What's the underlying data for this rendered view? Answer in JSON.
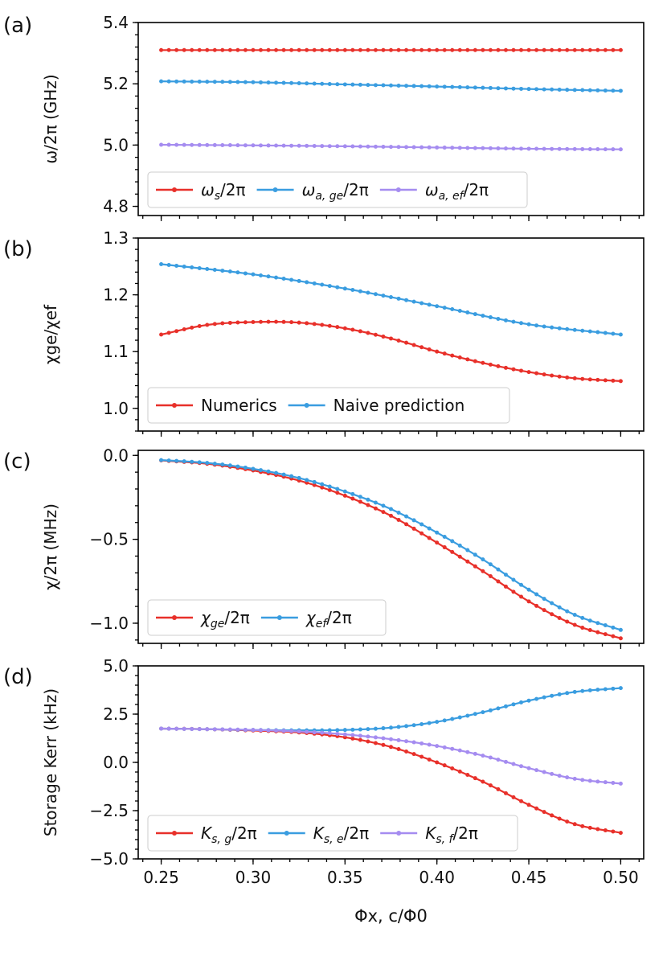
{
  "figure": {
    "x_label": "Φx, c/Φ0",
    "x_ticks": [
      "0.25",
      "0.30",
      "0.35",
      "0.40",
      "0.45",
      "0.50"
    ],
    "x_range": [
      0.2375,
      0.5125
    ],
    "colors": {
      "red": "#e8302a",
      "blue": "#3a9de0",
      "purple": "#a58cf0"
    }
  },
  "chart_data": [
    {
      "panel_label": "(a)",
      "type": "line",
      "ylabel": "ω/2π (GHz)",
      "ylim": [
        4.77,
        5.4
      ],
      "yticks": [
        "4.8",
        "5.0",
        "5.2",
        "5.4"
      ],
      "ytick_values": [
        4.8,
        5.0,
        5.2,
        5.4
      ],
      "x": [
        0.25,
        0.5
      ],
      "n_points": 61,
      "legend_location": "lower-left",
      "series": [
        {
          "name": "ωs/2π",
          "color": "red",
          "anchors": [
            [
              0.25,
              5.31
            ],
            [
              0.5,
              5.31
            ]
          ]
        },
        {
          "name": "ωa, ge/2π",
          "color": "blue",
          "anchors": [
            [
              0.25,
              5.208
            ],
            [
              0.3,
              5.205
            ],
            [
              0.35,
              5.198
            ],
            [
              0.4,
              5.191
            ],
            [
              0.45,
              5.183
            ],
            [
              0.5,
              5.177
            ]
          ]
        },
        {
          "name": "ωa, ef/2π",
          "color": "purple",
          "anchors": [
            [
              0.25,
              5.001
            ],
            [
              0.3,
              4.999
            ],
            [
              0.35,
              4.996
            ],
            [
              0.4,
              4.992
            ],
            [
              0.45,
              4.988
            ],
            [
              0.5,
              4.986
            ]
          ]
        }
      ]
    },
    {
      "panel_label": "(b)",
      "type": "line",
      "ylabel": "χge/χef",
      "ylim": [
        0.96,
        1.3
      ],
      "yticks": [
        "1.0",
        "1.1",
        "1.2",
        "1.3"
      ],
      "ytick_values": [
        1.0,
        1.1,
        1.2,
        1.3
      ],
      "n_points": 61,
      "legend_location": "lower-left",
      "series": [
        {
          "name": "Numerics",
          "color": "red",
          "anchors": [
            [
              0.25,
              1.13
            ],
            [
              0.275,
              1.147
            ],
            [
              0.3,
              1.152
            ],
            [
              0.325,
              1.151
            ],
            [
              0.35,
              1.141
            ],
            [
              0.375,
              1.123
            ],
            [
              0.4,
              1.1
            ],
            [
              0.425,
              1.08
            ],
            [
              0.45,
              1.064
            ],
            [
              0.475,
              1.053
            ],
            [
              0.5,
              1.048
            ]
          ]
        },
        {
          "name": "Naive prediction",
          "color": "blue",
          "anchors": [
            [
              0.25,
              1.254
            ],
            [
              0.3,
              1.236
            ],
            [
              0.35,
              1.211
            ],
            [
              0.4,
              1.18
            ],
            [
              0.45,
              1.148
            ],
            [
              0.5,
              1.13
            ]
          ]
        }
      ]
    },
    {
      "panel_label": "(c)",
      "type": "line",
      "ylabel": "χ/2π (MHz)",
      "ylim": [
        -1.12,
        0.03
      ],
      "yticks": [
        "−1.0",
        "−0.5",
        "0.0"
      ],
      "ytick_values": [
        -1.0,
        -0.5,
        0.0
      ],
      "n_points": 61,
      "legend_location": "lower-left",
      "series": [
        {
          "name": "χge/2π",
          "color": "red",
          "anchors": [
            [
              0.25,
              -0.03
            ],
            [
              0.275,
              -0.05
            ],
            [
              0.3,
              -0.09
            ],
            [
              0.325,
              -0.15
            ],
            [
              0.35,
              -0.24
            ],
            [
              0.375,
              -0.36
            ],
            [
              0.4,
              -0.52
            ],
            [
              0.425,
              -0.69
            ],
            [
              0.45,
              -0.87
            ],
            [
              0.475,
              -1.01
            ],
            [
              0.5,
              -1.09
            ]
          ]
        },
        {
          "name": "χef/2π",
          "color": "blue",
          "anchors": [
            [
              0.25,
              -0.028
            ],
            [
              0.275,
              -0.045
            ],
            [
              0.3,
              -0.08
            ],
            [
              0.325,
              -0.135
            ],
            [
              0.35,
              -0.215
            ],
            [
              0.375,
              -0.32
            ],
            [
              0.4,
              -0.46
            ],
            [
              0.425,
              -0.62
            ],
            [
              0.45,
              -0.8
            ],
            [
              0.475,
              -0.95
            ],
            [
              0.5,
              -1.04
            ]
          ]
        }
      ]
    },
    {
      "panel_label": "(d)",
      "type": "line",
      "ylabel": "Storage Kerr (kHz)",
      "ylim": [
        -5.0,
        5.0
      ],
      "yticks": [
        "−5.0",
        "−2.5",
        "0.0",
        "2.5",
        "5.0"
      ],
      "ytick_values": [
        -5.0,
        -2.5,
        0.0,
        2.5,
        5.0
      ],
      "n_points": 61,
      "legend_location": "lower-left",
      "series": [
        {
          "name": "Ks, g/2π",
          "color": "red",
          "anchors": [
            [
              0.25,
              1.75
            ],
            [
              0.275,
              1.72
            ],
            [
              0.3,
              1.65
            ],
            [
              0.325,
              1.55
            ],
            [
              0.35,
              1.3
            ],
            [
              0.375,
              0.8
            ],
            [
              0.4,
              0.0
            ],
            [
              0.425,
              -1.0
            ],
            [
              0.45,
              -2.2
            ],
            [
              0.475,
              -3.2
            ],
            [
              0.5,
              -3.65
            ]
          ]
        },
        {
          "name": "Ks, e/2π",
          "color": "blue",
          "anchors": [
            [
              0.25,
              1.75
            ],
            [
              0.275,
              1.72
            ],
            [
              0.3,
              1.68
            ],
            [
              0.325,
              1.66
            ],
            [
              0.35,
              1.68
            ],
            [
              0.375,
              1.8
            ],
            [
              0.4,
              2.1
            ],
            [
              0.425,
              2.6
            ],
            [
              0.45,
              3.2
            ],
            [
              0.475,
              3.65
            ],
            [
              0.5,
              3.85
            ]
          ]
        },
        {
          "name": "Ks, f/2π",
          "color": "purple",
          "anchors": [
            [
              0.25,
              1.75
            ],
            [
              0.275,
              1.72
            ],
            [
              0.3,
              1.68
            ],
            [
              0.325,
              1.6
            ],
            [
              0.35,
              1.45
            ],
            [
              0.375,
              1.2
            ],
            [
              0.4,
              0.85
            ],
            [
              0.425,
              0.35
            ],
            [
              0.45,
              -0.3
            ],
            [
              0.475,
              -0.85
            ],
            [
              0.5,
              -1.1
            ]
          ]
        }
      ]
    }
  ],
  "legend_labels": {
    "a": [
      {
        "base": "ω",
        "sub": "s",
        "tail": "/2π"
      },
      {
        "base": "ω",
        "sub": "a, ge",
        "tail": "/2π"
      },
      {
        "base": "ω",
        "sub": "a, ef",
        "tail": "/2π"
      }
    ],
    "b": [
      {
        "text": "Numerics"
      },
      {
        "text": "Naive prediction"
      }
    ],
    "c": [
      {
        "base": "χ",
        "sub": "ge",
        "tail": "/2π"
      },
      {
        "base": "χ",
        "sub": "ef",
        "tail": "/2π"
      }
    ],
    "d": [
      {
        "base": "K",
        "sub": "s, g",
        "tail": "/2π"
      },
      {
        "base": "K",
        "sub": "s, e",
        "tail": "/2π"
      },
      {
        "base": "K",
        "sub": "s, f",
        "tail": "/2π"
      }
    ]
  }
}
